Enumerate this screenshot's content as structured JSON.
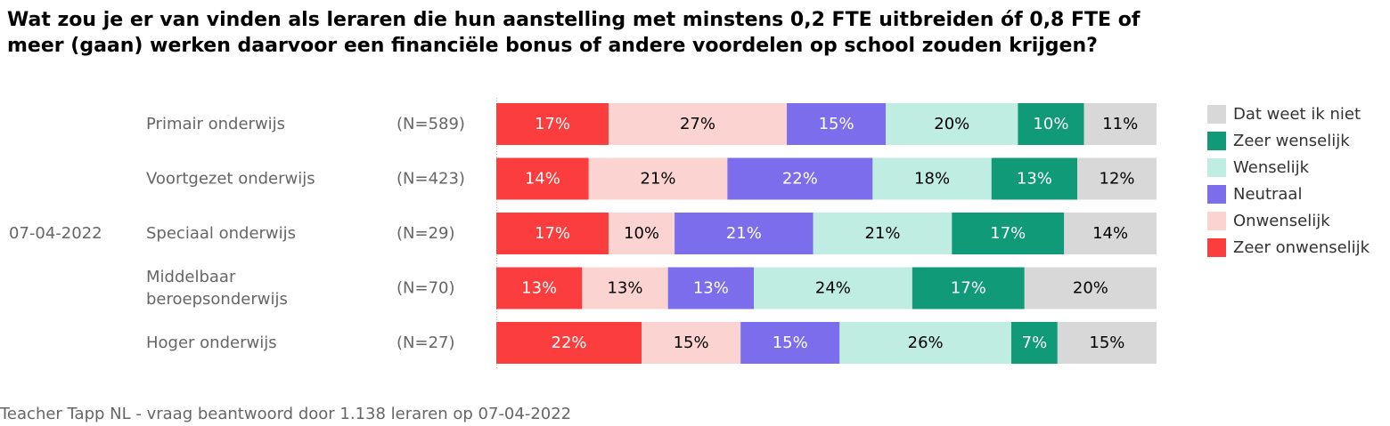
{
  "title": "Wat zou je er van vinden als leraren die hun aanstelling met minstens 0,2 FTE uitbreiden óf 0,8 FTE of meer (gaan) werken daarvoor een financiële bonus of andere voordelen op school zouden krijgen?",
  "source": "Teacher Tapp NL - vraag beantwoord door 1.138 leraren op 07-04-2022",
  "colors": {
    "zeer_onwenselijk": "#fc3d3d",
    "onwenselijk": "#fbd3d0",
    "neutraal": "#7b6deb",
    "wenselijk": "#bfede1",
    "zeer_wenselijk": "#109a78",
    "weet_niet": "#d8d8d8",
    "label_muted": "#666666"
  },
  "chart_data": {
    "type": "bar",
    "orientation": "horizontal",
    "stacked": true,
    "normalized": true,
    "date_label": "07-04-2022",
    "categories": [
      "Primair onderwijs",
      "Voortgezet onderwijs",
      "Speciaal onderwijs",
      "Middelbaar beroepsonderwijs",
      "Hoger onderwijs"
    ],
    "category_lines": [
      [
        "Primair onderwijs"
      ],
      [
        "Voortgezet onderwijs"
      ],
      [
        "Speciaal onderwijs"
      ],
      [
        "Middelbaar",
        "beroepsonderwijs"
      ],
      [
        "Hoger onderwijs"
      ]
    ],
    "n_labels": [
      "(N=589)",
      "(N=423)",
      "(N=29)",
      "(N=70)",
      "(N=27)"
    ],
    "series": [
      {
        "name": "Zeer onwenselijk",
        "color": "#fc3d3d",
        "text_color": "#ffffff",
        "values": [
          17,
          14,
          17,
          13,
          22
        ],
        "labels": [
          "17%",
          "14%",
          "17%",
          "13%",
          "22%"
        ]
      },
      {
        "name": "Onwenselijk",
        "color": "#fbd3d0",
        "text_color": "#000000",
        "values": [
          27,
          21,
          10,
          13,
          15
        ],
        "labels": [
          "27%",
          "21%",
          "10%",
          "13%",
          "15%"
        ]
      },
      {
        "name": "Neutraal",
        "color": "#7b6deb",
        "text_color": "#ffffff",
        "values": [
          15,
          22,
          21,
          13,
          15
        ],
        "labels": [
          "15%",
          "22%",
          "21%",
          "13%",
          "15%"
        ]
      },
      {
        "name": "Wenselijk",
        "color": "#bfede1",
        "text_color": "#000000",
        "values": [
          20,
          18,
          21,
          24,
          26
        ],
        "labels": [
          "20%",
          "18%",
          "21%",
          "24%",
          "26%"
        ]
      },
      {
        "name": "Zeer wenselijk",
        "color": "#109a78",
        "text_color": "#ffffff",
        "values": [
          10,
          13,
          17,
          17,
          7
        ],
        "labels": [
          "10%",
          "13%",
          "17%",
          "17%",
          "7%"
        ]
      },
      {
        "name": "Dat weet ik niet",
        "color": "#d8d8d8",
        "text_color": "#000000",
        "values": [
          11,
          12,
          14,
          20,
          15
        ],
        "labels": [
          "11%",
          "12%",
          "14%",
          "20%",
          "15%"
        ]
      }
    ],
    "legend": {
      "placement": "right",
      "order": [
        "Dat weet ik niet",
        "Zeer wenselijk",
        "Wenselijk",
        "Neutraal",
        "Onwenselijk",
        "Zeer onwenselijk"
      ]
    }
  }
}
